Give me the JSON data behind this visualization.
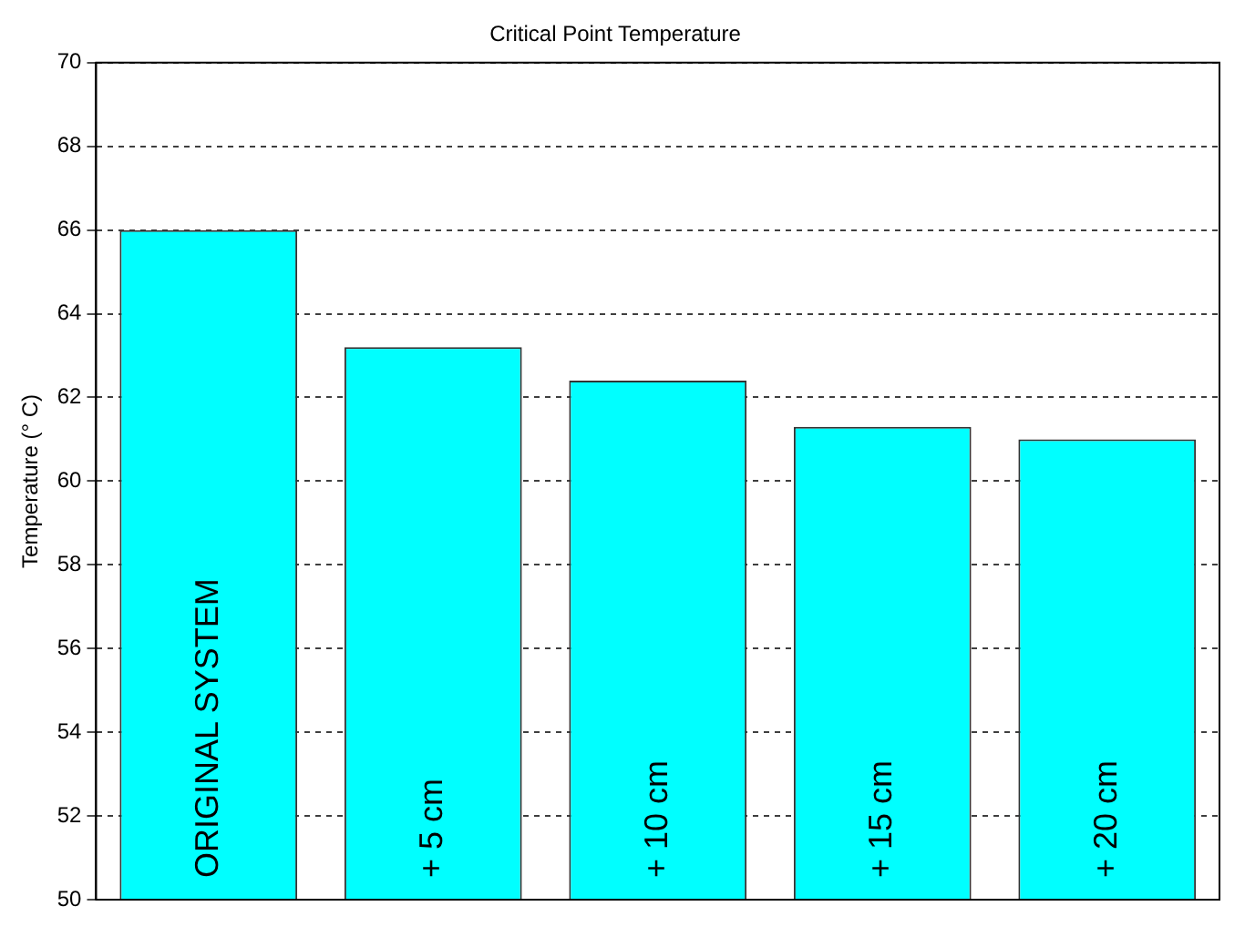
{
  "chart_data": {
    "type": "bar",
    "title": "Critical Point Temperature",
    "ylabel": "Temperature (° C)",
    "categories": [
      "ORIGINAL SYSTEM",
      "+ 5 cm",
      "+ 10 cm",
      "+ 15 cm",
      "+ 20 cm"
    ],
    "values": [
      66,
      63.2,
      62.4,
      61.3,
      61.0
    ],
    "color": "#00ffff",
    "ylim": [
      50,
      70
    ],
    "yticks": [
      50,
      52,
      54,
      56,
      58,
      60,
      62,
      64,
      66,
      68,
      70
    ],
    "grid": "y"
  }
}
